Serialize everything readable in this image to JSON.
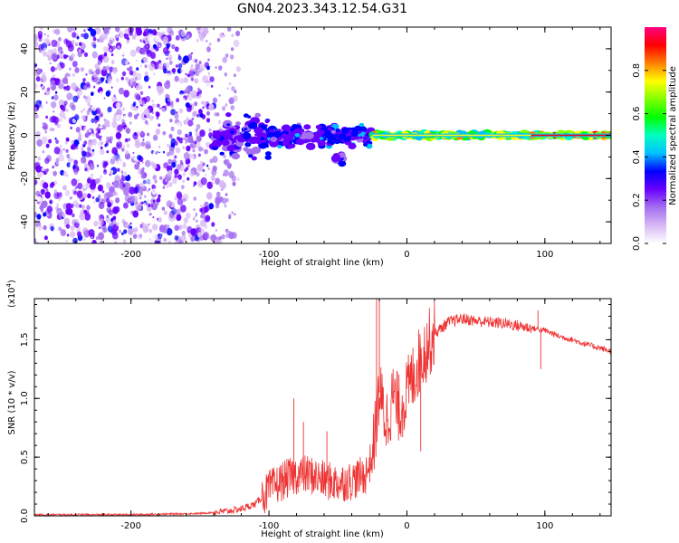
{
  "title": "GN04.2023.343.12.54.G31",
  "chart_data": [
    {
      "type": "heatmap",
      "xlabel": "Height of straight line (km)",
      "ylabel": "Frequency (Hz)",
      "xlim": [
        -270,
        148
      ],
      "ylim": [
        -50,
        50
      ],
      "xticks": [
        -200,
        -100,
        0,
        100
      ],
      "xtick_labels": [
        "-200",
        "-100",
        "0",
        "100"
      ],
      "yticks": [
        -40,
        -20,
        0,
        20,
        40
      ],
      "ytick_labels": [
        "-40",
        "-20",
        "0",
        "20",
        "40"
      ],
      "colorbar": {
        "label": "Normalized spectral amplitude",
        "range": [
          0,
          1
        ],
        "ticks": [
          0.0,
          0.2,
          0.4,
          0.6,
          0.8
        ],
        "tick_labels": [
          "0.0",
          "0.2",
          "0.4",
          "0.6",
          "0.8"
        ],
        "colors": [
          "#ffffff",
          "#d8b8f5",
          "#a46ff0",
          "#6a00ff",
          "#0000ff",
          "#00c0ff",
          "#00ffc0",
          "#00ff00",
          "#80ff00",
          "#ffff00",
          "#ff8000",
          "#ff0000",
          "#ff0080"
        ]
      },
      "noise_region_x": [
        -270,
        -140
      ],
      "signal_line": {
        "x": [
          -140,
          148
        ],
        "y": 0
      },
      "features": [
        {
          "x": [
            -140,
            -100
          ],
          "y_spread": 12,
          "amplitude": 0.3
        },
        {
          "x": [
            -100,
            -25
          ],
          "y_spread": 6,
          "amplitude": 0.35
        },
        {
          "x": [
            -25,
            90
          ],
          "y_spread": 1.5,
          "amplitude": 0.7
        },
        {
          "x": [
            90,
            148
          ],
          "y_spread": 1,
          "amplitude": 0.8
        },
        {
          "x": [
            -52,
            -46
          ],
          "y_center": -11,
          "y_spread": 3,
          "amplitude": 0.3
        }
      ]
    },
    {
      "type": "line",
      "xlabel": "Height of straight line (km)",
      "ylabel": "SNR (10 * v/v)",
      "y_multiplier": "(x10",
      "y_multiplier_exp": "4",
      "y_multiplier_close": ")",
      "xlim": [
        -270,
        148
      ],
      "ylim": [
        0,
        1.85
      ],
      "xticks": [
        -200,
        -100,
        0,
        100
      ],
      "xtick_labels": [
        "-200",
        "-100",
        "0",
        "100"
      ],
      "yticks": [
        0,
        0.5,
        1.0,
        1.5
      ],
      "ytick_labels": [
        "0.0",
        "0.5",
        "1.0",
        "1.5"
      ],
      "color": "#ee3333",
      "series": [
        {
          "name": "SNR",
          "x": [
            -270,
            -250,
            -200,
            -150,
            -130,
            -120,
            -110,
            -100,
            -90,
            -80,
            -70,
            -60,
            -50,
            -40,
            -30,
            -25,
            -20,
            -15,
            -10,
            -5,
            0,
            10,
            20,
            30,
            40,
            50,
            60,
            70,
            80,
            90,
            100,
            110,
            120,
            130,
            140,
            148
          ],
          "y": [
            0.01,
            0.01,
            0.01,
            0.02,
            0.04,
            0.06,
            0.1,
            0.22,
            0.3,
            0.35,
            0.35,
            0.3,
            0.28,
            0.3,
            0.35,
            0.5,
            1.05,
            0.8,
            1.0,
            0.9,
            1.05,
            1.35,
            1.55,
            1.65,
            1.68,
            1.66,
            1.65,
            1.64,
            1.62,
            1.6,
            1.58,
            1.53,
            1.5,
            1.46,
            1.43,
            1.4
          ]
        }
      ],
      "spikes": [
        {
          "x": -82,
          "y": 1.0
        },
        {
          "x": -75,
          "y": 0.8
        },
        {
          "x": -58,
          "y": 0.72
        },
        {
          "x": -22,
          "y": 1.85
        },
        {
          "x": -20,
          "y": 1.85
        },
        {
          "x": -10,
          "y": 1.25
        },
        {
          "x": 10,
          "y": 0.55
        },
        {
          "x": 95,
          "y": 1.75
        },
        {
          "x": 97,
          "y": 1.25
        }
      ]
    }
  ]
}
